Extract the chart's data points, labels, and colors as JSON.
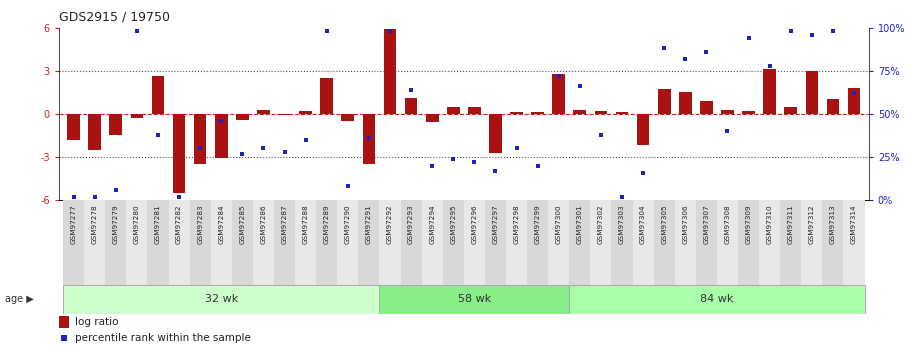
{
  "title": "GDS2915 / 19750",
  "samples": [
    "GSM97277",
    "GSM97278",
    "GSM97279",
    "GSM97280",
    "GSM97281",
    "GSM97282",
    "GSM97283",
    "GSM97284",
    "GSM97285",
    "GSM97286",
    "GSM97287",
    "GSM97288",
    "GSM97289",
    "GSM97290",
    "GSM97291",
    "GSM97292",
    "GSM97293",
    "GSM97294",
    "GSM97295",
    "GSM97296",
    "GSM97297",
    "GSM97298",
    "GSM97299",
    "GSM97300",
    "GSM97301",
    "GSM97302",
    "GSM97303",
    "GSM97304",
    "GSM97305",
    "GSM97306",
    "GSM97307",
    "GSM97308",
    "GSM97309",
    "GSM97310",
    "GSM97311",
    "GSM97312",
    "GSM97313",
    "GSM97314"
  ],
  "log_ratio": [
    -1.8,
    -2.5,
    -1.5,
    -0.3,
    2.6,
    -5.5,
    -3.5,
    -3.1,
    -0.4,
    0.3,
    -0.1,
    0.2,
    2.5,
    -0.5,
    -3.5,
    5.9,
    1.1,
    -0.6,
    0.5,
    0.5,
    -2.7,
    0.1,
    0.1,
    2.8,
    0.3,
    0.2,
    0.1,
    -2.2,
    1.7,
    1.5,
    0.9,
    0.3,
    0.2,
    3.1,
    0.5,
    3.0,
    1.0,
    1.8
  ],
  "percentile": [
    2,
    2,
    6,
    98,
    38,
    2,
    30,
    46,
    27,
    30,
    28,
    35,
    98,
    8,
    36,
    98,
    64,
    20,
    24,
    22,
    17,
    30,
    20,
    72,
    66,
    38,
    2,
    16,
    88,
    82,
    86,
    40,
    94,
    78,
    98,
    96,
    98,
    62
  ],
  "groups": [
    {
      "label": "32 wk",
      "start": 0,
      "end": 15,
      "color": "#ccffcc"
    },
    {
      "label": "58 wk",
      "start": 15,
      "end": 24,
      "color": "#88ee88"
    },
    {
      "label": "84 wk",
      "start": 24,
      "end": 38,
      "color": "#aaffaa"
    }
  ],
  "ylim": [
    -6,
    6
  ],
  "bar_color": "#aa1111",
  "dot_color": "#2222bb",
  "zero_line_color": "#cc2222",
  "dotted_line_color": "#555555",
  "right_axis_color": "#2222bb",
  "background_color": "#ffffff",
  "left_axis_color": "#cc2222"
}
